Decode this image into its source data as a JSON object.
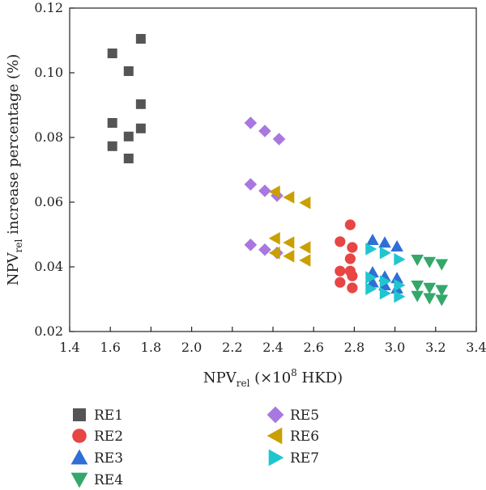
{
  "chart_data": {
    "type": "scatter",
    "xlabel": "NPV",
    "xlabel_sub": "rel",
    "xlabel_unit_pre": " (×10",
    "xlabel_unit_sup": "8",
    "xlabel_unit_post": " HKD)",
    "ylabel": "NPV",
    "ylabel_sub": "rel",
    "ylabel_rest": " increase percentage (%)",
    "xlim": [
      1.4,
      3.4
    ],
    "ylim": [
      0.02,
      0.12
    ],
    "xticks": [
      "1.4",
      "1.6",
      "1.8",
      "2.0",
      "2.2",
      "2.4",
      "2.6",
      "2.8",
      "3.0",
      "3.2",
      "3.4"
    ],
    "yticks": [
      "0.02",
      "0.04",
      "0.06",
      "0.08",
      "0.10",
      "0.12"
    ],
    "grid": false,
    "legend_position": "bottom",
    "series": [
      {
        "name": "RE1",
        "marker": "square",
        "color": "#555555",
        "points": [
          [
            1.61,
            0.106
          ],
          [
            1.75,
            0.1105
          ],
          [
            1.69,
            0.1005
          ],
          [
            1.75,
            0.0903
          ],
          [
            1.61,
            0.0845
          ],
          [
            1.75,
            0.0828
          ],
          [
            1.69,
            0.0803
          ],
          [
            1.61,
            0.0773
          ],
          [
            1.69,
            0.0735
          ]
        ]
      },
      {
        "name": "RE2",
        "marker": "circle",
        "color": "#e84545",
        "points": [
          [
            2.78,
            0.053
          ],
          [
            2.73,
            0.0478
          ],
          [
            2.79,
            0.046
          ],
          [
            2.78,
            0.0425
          ],
          [
            2.73,
            0.0387
          ],
          [
            2.78,
            0.0387
          ],
          [
            2.79,
            0.0372
          ],
          [
            2.73,
            0.0352
          ],
          [
            2.79,
            0.0335
          ]
        ]
      },
      {
        "name": "RE3",
        "marker": "triangle-up",
        "color": "#2f6fd6",
        "points": [
          [
            2.89,
            0.0483
          ],
          [
            2.95,
            0.0475
          ],
          [
            3.01,
            0.0463
          ],
          [
            2.89,
            0.0383
          ],
          [
            2.95,
            0.037
          ],
          [
            3.01,
            0.0365
          ],
          [
            2.89,
            0.0352
          ],
          [
            2.95,
            0.0343
          ],
          [
            3.01,
            0.0333
          ]
        ]
      },
      {
        "name": "RE4",
        "marker": "triangle-down",
        "color": "#33a86a",
        "points": [
          [
            3.11,
            0.0422
          ],
          [
            3.17,
            0.0415
          ],
          [
            3.23,
            0.0408
          ],
          [
            3.11,
            0.0342
          ],
          [
            3.17,
            0.0335
          ],
          [
            3.23,
            0.0328
          ],
          [
            3.11,
            0.031
          ],
          [
            3.17,
            0.0303
          ],
          [
            3.23,
            0.0298
          ]
        ]
      },
      {
        "name": "RE5",
        "marker": "diamond",
        "color": "#a878e0",
        "points": [
          [
            2.29,
            0.0845
          ],
          [
            2.36,
            0.082
          ],
          [
            2.43,
            0.0795
          ],
          [
            2.29,
            0.0655
          ],
          [
            2.36,
            0.0635
          ],
          [
            2.42,
            0.062
          ],
          [
            2.29,
            0.0468
          ],
          [
            2.36,
            0.0453
          ],
          [
            2.42,
            0.0443
          ]
        ]
      },
      {
        "name": "RE6",
        "marker": "triangle-left",
        "color": "#c9a000",
        "points": [
          [
            2.41,
            0.0632
          ],
          [
            2.48,
            0.0615
          ],
          [
            2.56,
            0.0598
          ],
          [
            2.41,
            0.0488
          ],
          [
            2.48,
            0.0475
          ],
          [
            2.56,
            0.046
          ],
          [
            2.41,
            0.0443
          ],
          [
            2.48,
            0.0433
          ],
          [
            2.56,
            0.042
          ]
        ]
      },
      {
        "name": "RE7",
        "marker": "triangle-right",
        "color": "#1fc6cf",
        "points": [
          [
            2.88,
            0.0455
          ],
          [
            2.95,
            0.0443
          ],
          [
            3.02,
            0.0423
          ],
          [
            2.88,
            0.0367
          ],
          [
            2.95,
            0.0355
          ],
          [
            3.02,
            0.0343
          ],
          [
            2.88,
            0.0332
          ],
          [
            2.95,
            0.0318
          ],
          [
            3.02,
            0.0308
          ]
        ]
      }
    ]
  }
}
